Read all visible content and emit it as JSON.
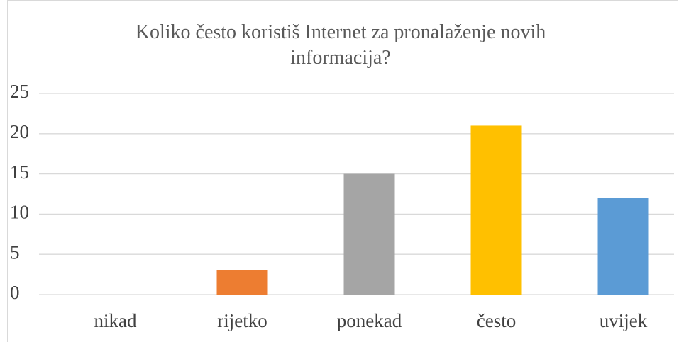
{
  "chart_data": {
    "type": "bar",
    "title": "Koliko često koristiš Internet za pronalaženje novih informacija?",
    "categories": [
      "nikad",
      "rijetko",
      "ponekad",
      "često",
      "uvijek"
    ],
    "values": [
      0,
      3,
      15,
      21,
      12
    ],
    "colors": [
      "#4472c4",
      "#ed7d31",
      "#a5a5a5",
      "#ffc000",
      "#5b9bd5"
    ],
    "ylim": [
      0,
      25
    ],
    "yticks": [
      0,
      5,
      10,
      15,
      20,
      25
    ],
    "grid": true
  }
}
